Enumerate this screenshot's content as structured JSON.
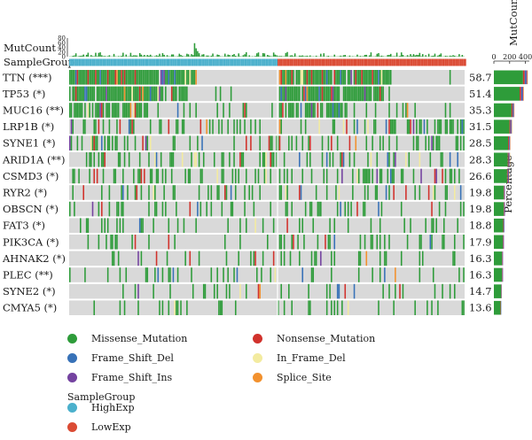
{
  "chart_data": {
    "type": "heatmap",
    "title": "",
    "top_annotation_label": "MutCount",
    "top_annotation_ticks": [
      "80",
      "60",
      "40",
      "20",
      "0"
    ],
    "top_annotation_range": [
      0,
      80
    ],
    "group_label": "SampleGroup",
    "groups": [
      {
        "name": "HighExp",
        "color": "#4bb0cc",
        "fraction": 0.525
      },
      {
        "name": "LowExp",
        "color": "#db4b34",
        "fraction": 0.475
      }
    ],
    "genes": [
      "TTN (***)",
      "TP53 (*)",
      "MUC16 (**)",
      "LRP1B (*)",
      "SYNE1 (*)",
      "ARID1A (**)",
      "CSMD3 (*)",
      "RYR2 (*)",
      "OBSCN (*)",
      "FAT3 (*)",
      "PIK3CA (*)",
      "AHNAK2 (*)",
      "PLEC (**)",
      "SYNE2 (*)",
      "CMYA5 (*)"
    ],
    "percentages": [
      "58.7",
      "51.4",
      "35.3",
      "31.5",
      "28.5",
      "28.3",
      "26.6",
      "19.8",
      "19.8",
      "18.8",
      "17.9",
      "16.3",
      "16.3",
      "14.7",
      "13.6"
    ],
    "right_bar_label": "MutCount",
    "right_bar_ticks": [
      "0",
      "200",
      "400"
    ],
    "right_bar_range": [
      0,
      450
    ],
    "right_axis_title": "Percentage",
    "right_bar_counts": [
      430,
      380,
      260,
      230,
      210,
      205,
      195,
      145,
      145,
      138,
      131,
      119,
      119,
      107,
      99
    ],
    "mutation_types": [
      {
        "name": "Missense_Mutation",
        "color": "#2e9c3a"
      },
      {
        "name": "Nonsense_Mutation",
        "color": "#d1322c"
      },
      {
        "name": "Frame_Shift_Del",
        "color": "#3872b8"
      },
      {
        "name": "In_Frame_Del",
        "color": "#f3eba0"
      },
      {
        "name": "Frame_Shift_Ins",
        "color": "#7443a0"
      },
      {
        "name": "Splice_Site",
        "color": "#f2912e"
      }
    ],
    "legend_group_title": "SampleGroup",
    "grid": true
  }
}
